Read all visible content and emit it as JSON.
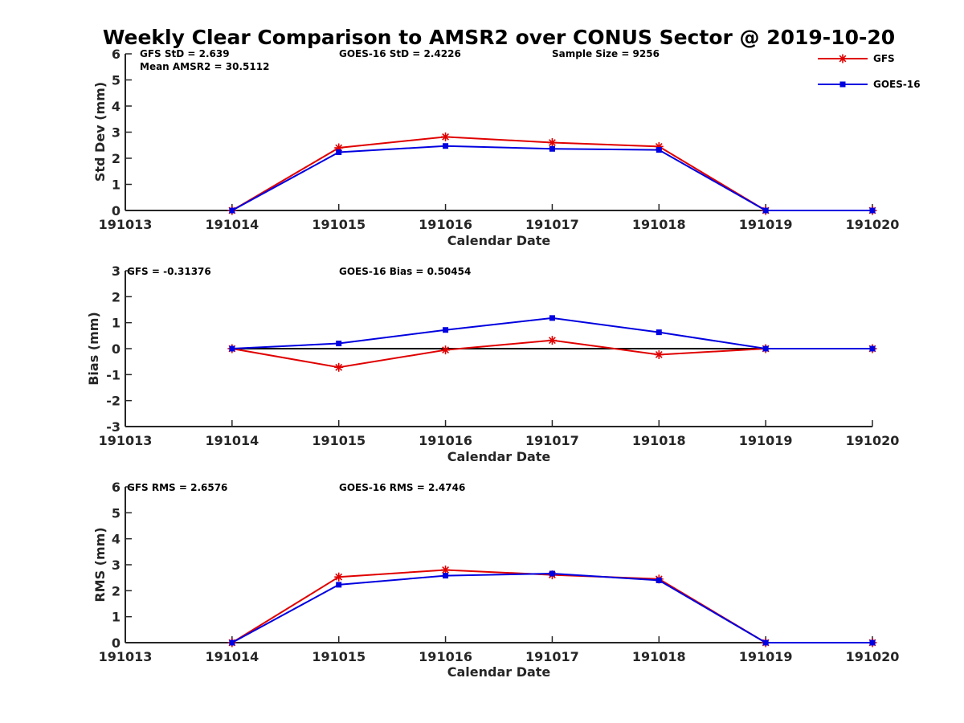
{
  "chart_data": {
    "type": "line",
    "title": "Weekly Clear Comparison to AMSR2 over CONUS Sector @ 2019-10-20",
    "categories": [
      "191013",
      "191014",
      "191015",
      "191016",
      "191017",
      "191018",
      "191019",
      "191020"
    ],
    "legend": {
      "placement": "top-right",
      "entries": [
        {
          "name": "GFS",
          "color": "#e00000",
          "marker": "asterisk"
        },
        {
          "name": "GOES-16",
          "color": "#0000e0",
          "marker": "square"
        }
      ]
    },
    "panels": [
      {
        "id": "std",
        "xlabel": "Calendar Date",
        "ylabel": "Std Dev (mm)",
        "ylim": [
          0,
          6
        ],
        "yticks": [
          0,
          1,
          2,
          3,
          4,
          5,
          6
        ],
        "zero_line": false,
        "annotations": [
          "GFS StD = 2.639",
          "Mean AMSR2 = 30.5112",
          "GOES-16 StD = 2.4226",
          "Sample Size = 9256"
        ],
        "series": [
          {
            "name": "GFS",
            "values": [
              null,
              0,
              2.4,
              2.82,
              2.6,
              2.45,
              0,
              0
            ]
          },
          {
            "name": "GOES-16",
            "values": [
              null,
              0,
              2.23,
              2.47,
              2.36,
              2.32,
              0,
              0
            ]
          }
        ]
      },
      {
        "id": "bias",
        "xlabel": "Calendar Date",
        "ylabel": "Bias (mm)",
        "ylim": [
          -3,
          3
        ],
        "yticks": [
          -3,
          -2,
          -1,
          0,
          1,
          2,
          3
        ],
        "zero_line": true,
        "annotations": [
          "GFS = -0.31376",
          "GOES-16 Bias  = 0.50454"
        ],
        "series": [
          {
            "name": "GFS",
            "values": [
              null,
              0,
              -0.72,
              -0.05,
              0.32,
              -0.23,
              0,
              0
            ]
          },
          {
            "name": "GOES-16",
            "values": [
              null,
              0,
              0.2,
              0.72,
              1.18,
              0.63,
              0,
              0
            ]
          }
        ]
      },
      {
        "id": "rms",
        "xlabel": "Calendar Date",
        "ylabel": "RMS (mm)",
        "ylim": [
          0,
          6
        ],
        "yticks": [
          0,
          1,
          2,
          3,
          4,
          5,
          6
        ],
        "zero_line": false,
        "annotations": [
          "GFS RMS = 2.6576",
          "GOES-16 RMS = 2.4746"
        ],
        "series": [
          {
            "name": "GFS",
            "values": [
              null,
              0,
              2.53,
              2.8,
              2.61,
              2.45,
              0,
              0
            ]
          },
          {
            "name": "GOES-16",
            "values": [
              null,
              0,
              2.23,
              2.58,
              2.66,
              2.4,
              0,
              0
            ]
          }
        ]
      }
    ]
  }
}
